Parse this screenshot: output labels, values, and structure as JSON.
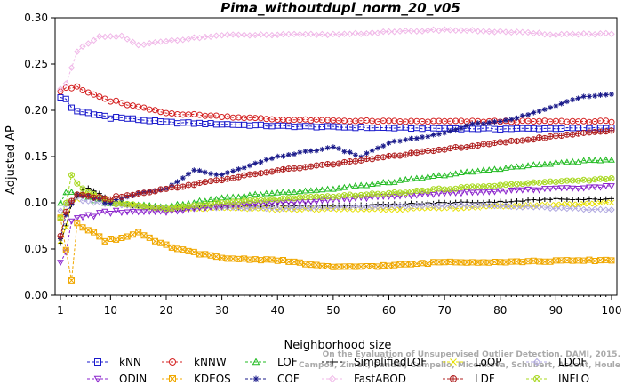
{
  "chart_data": {
    "type": "line",
    "title": "Pima_withoutdupl_norm_20_v05",
    "xlabel": "Neighborhood size",
    "ylabel": "Adjusted AP",
    "xlim": [
      1,
      100
    ],
    "ylim": [
      0.0,
      0.3
    ],
    "x_ticks": [
      "1",
      "10",
      "20",
      "30",
      "40",
      "50",
      "60",
      "70",
      "80",
      "90",
      "100"
    ],
    "y_ticks": [
      "0.00",
      "0.05",
      "0.10",
      "0.15",
      "0.20",
      "0.25",
      "0.30"
    ],
    "watermark": [
      "Campos, Zimek, Sander, Campello, Micenkova, Schubert, Assent, Houle",
      "On the Evaluation of Unsupervised Outlier Detection. DAMI, 2015."
    ],
    "legend_position": "bottom",
    "series": [
      {
        "name": "kNN",
        "color": "#1a1acc",
        "marker": "square",
        "dash": "3,2",
        "anchors": [
          [
            1,
            0.213
          ],
          [
            2,
            0.212
          ],
          [
            3,
            0.203
          ],
          [
            5,
            0.197
          ],
          [
            10,
            0.193
          ],
          [
            20,
            0.187
          ],
          [
            40,
            0.183
          ],
          [
            60,
            0.181
          ],
          [
            80,
            0.18
          ],
          [
            100,
            0.181
          ]
        ]
      },
      {
        "name": "kNNW",
        "color": "#d42020",
        "marker": "circle",
        "dash": "3,2",
        "anchors": [
          [
            1,
            0.222
          ],
          [
            2,
            0.225
          ],
          [
            4,
            0.224
          ],
          [
            6,
            0.219
          ],
          [
            10,
            0.21
          ],
          [
            20,
            0.197
          ],
          [
            40,
            0.19
          ],
          [
            60,
            0.188
          ],
          [
            80,
            0.188
          ],
          [
            100,
            0.188
          ]
        ]
      },
      {
        "name": "LOF",
        "color": "#22bb22",
        "marker": "triangle-up",
        "dash": "3,2",
        "anchors": [
          [
            1,
            0.1
          ],
          [
            2,
            0.112
          ],
          [
            4,
            0.108
          ],
          [
            10,
            0.1
          ],
          [
            20,
            0.096
          ],
          [
            30,
            0.105
          ],
          [
            40,
            0.111
          ],
          [
            50,
            0.115
          ],
          [
            60,
            0.122
          ],
          [
            70,
            0.13
          ],
          [
            80,
            0.137
          ],
          [
            90,
            0.143
          ],
          [
            100,
            0.147
          ]
        ]
      },
      {
        "name": "SimplifiedLOF",
        "color": "#000000",
        "marker": "plus",
        "dash": "3,2",
        "anchors": [
          [
            1,
            0.055
          ],
          [
            2,
            0.075
          ],
          [
            3,
            0.1
          ],
          [
            5,
            0.115
          ],
          [
            8,
            0.112
          ],
          [
            10,
            0.1
          ],
          [
            20,
            0.093
          ],
          [
            30,
            0.095
          ],
          [
            40,
            0.097
          ],
          [
            50,
            0.097
          ],
          [
            60,
            0.098
          ],
          [
            70,
            0.1
          ],
          [
            80,
            0.101
          ],
          [
            90,
            0.104
          ],
          [
            100,
            0.104
          ]
        ]
      },
      {
        "name": "LoOP",
        "color": "#e6e000",
        "marker": "x",
        "dash": "3,2",
        "anchors": [
          [
            1,
            0.06
          ],
          [
            2,
            0.075
          ],
          [
            3,
            0.1
          ],
          [
            5,
            0.11
          ],
          [
            10,
            0.1
          ],
          [
            20,
            0.093
          ],
          [
            30,
            0.094
          ],
          [
            40,
            0.093
          ],
          [
            50,
            0.093
          ],
          [
            60,
            0.093
          ],
          [
            70,
            0.094
          ],
          [
            80,
            0.096
          ],
          [
            90,
            0.098
          ],
          [
            100,
            0.1
          ]
        ]
      },
      {
        "name": "LDOF",
        "color": "#b0a8e0",
        "marker": "diamond",
        "dash": "3,2",
        "anchors": [
          [
            1,
            0.09
          ],
          [
            2,
            0.1
          ],
          [
            4,
            0.105
          ],
          [
            10,
            0.098
          ],
          [
            20,
            0.093
          ],
          [
            30,
            0.095
          ],
          [
            40,
            0.094
          ],
          [
            50,
            0.095
          ],
          [
            60,
            0.096
          ],
          [
            70,
            0.097
          ],
          [
            80,
            0.097
          ],
          [
            90,
            0.094
          ],
          [
            100,
            0.092
          ]
        ]
      },
      {
        "name": "ODIN",
        "color": "#8a22cc",
        "marker": "triangle-down",
        "dash": "3,2",
        "anchors": [
          [
            1,
            0.037
          ],
          [
            2,
            0.045
          ],
          [
            3,
            0.08
          ],
          [
            5,
            0.085
          ],
          [
            10,
            0.09
          ],
          [
            20,
            0.09
          ],
          [
            30,
            0.097
          ],
          [
            40,
            0.1
          ],
          [
            50,
            0.103
          ],
          [
            60,
            0.107
          ],
          [
            70,
            0.11
          ],
          [
            80,
            0.113
          ],
          [
            90,
            0.115
          ],
          [
            100,
            0.118
          ]
        ]
      },
      {
        "name": "KDEOS",
        "color": "#f0a800",
        "marker": "square-x",
        "dash": "3,2",
        "anchors": [
          [
            1,
            0.082
          ],
          [
            2,
            0.05
          ],
          [
            3,
            0.017
          ],
          [
            4,
            0.08
          ],
          [
            6,
            0.07
          ],
          [
            9,
            0.06
          ],
          [
            12,
            0.062
          ],
          [
            15,
            0.068
          ],
          [
            18,
            0.058
          ],
          [
            22,
            0.05
          ],
          [
            30,
            0.04
          ],
          [
            40,
            0.038
          ],
          [
            50,
            0.03
          ],
          [
            60,
            0.032
          ],
          [
            70,
            0.036
          ],
          [
            80,
            0.036
          ],
          [
            90,
            0.037
          ],
          [
            100,
            0.038
          ]
        ]
      },
      {
        "name": "INFLO",
        "color": "#a8d820",
        "marker": "circle-x",
        "dash": "3,2",
        "anchors": [
          [
            1,
            0.084
          ],
          [
            2,
            0.1
          ],
          [
            3,
            0.13
          ],
          [
            5,
            0.115
          ],
          [
            10,
            0.1
          ],
          [
            20,
            0.094
          ],
          [
            30,
            0.1
          ],
          [
            40,
            0.104
          ],
          [
            50,
            0.107
          ],
          [
            60,
            0.11
          ],
          [
            70,
            0.115
          ],
          [
            80,
            0.119
          ],
          [
            90,
            0.123
          ],
          [
            100,
            0.126
          ]
        ]
      },
      {
        "name": "COF",
        "color": "#1a1a8a",
        "marker": "star",
        "dash": "3,2",
        "anchors": [
          [
            1,
            0.06
          ],
          [
            2,
            0.085
          ],
          [
            4,
            0.11
          ],
          [
            10,
            0.1
          ],
          [
            15,
            0.11
          ],
          [
            20,
            0.115
          ],
          [
            25,
            0.135
          ],
          [
            30,
            0.13
          ],
          [
            35,
            0.14
          ],
          [
            40,
            0.15
          ],
          [
            45,
            0.155
          ],
          [
            50,
            0.16
          ],
          [
            55,
            0.15
          ],
          [
            60,
            0.165
          ],
          [
            65,
            0.17
          ],
          [
            70,
            0.175
          ],
          [
            75,
            0.185
          ],
          [
            80,
            0.188
          ],
          [
            85,
            0.195
          ],
          [
            90,
            0.205
          ],
          [
            95,
            0.215
          ],
          [
            100,
            0.218
          ]
        ]
      },
      {
        "name": "FastABOD",
        "color": "#f0b8e8",
        "marker": "diamond",
        "dash": "3,2",
        "anchors": [
          [
            1,
            0.225
          ],
          [
            2,
            0.23
          ],
          [
            3,
            0.245
          ],
          [
            4,
            0.262
          ],
          [
            6,
            0.272
          ],
          [
            8,
            0.278
          ],
          [
            10,
            0.28
          ],
          [
            12,
            0.28
          ],
          [
            15,
            0.27
          ],
          [
            20,
            0.275
          ],
          [
            30,
            0.281
          ],
          [
            50,
            0.282
          ],
          [
            70,
            0.287
          ],
          [
            80,
            0.285
          ],
          [
            90,
            0.282
          ],
          [
            100,
            0.283
          ]
        ]
      },
      {
        "name": "LDF",
        "color": "#b02020",
        "marker": "circle-plus",
        "dash": "3,2",
        "anchors": [
          [
            1,
            0.065
          ],
          [
            2,
            0.09
          ],
          [
            4,
            0.11
          ],
          [
            10,
            0.105
          ],
          [
            15,
            0.11
          ],
          [
            20,
            0.115
          ],
          [
            30,
            0.125
          ],
          [
            40,
            0.135
          ],
          [
            50,
            0.142
          ],
          [
            60,
            0.15
          ],
          [
            70,
            0.158
          ],
          [
            80,
            0.165
          ],
          [
            90,
            0.172
          ],
          [
            100,
            0.178
          ]
        ]
      }
    ]
  }
}
